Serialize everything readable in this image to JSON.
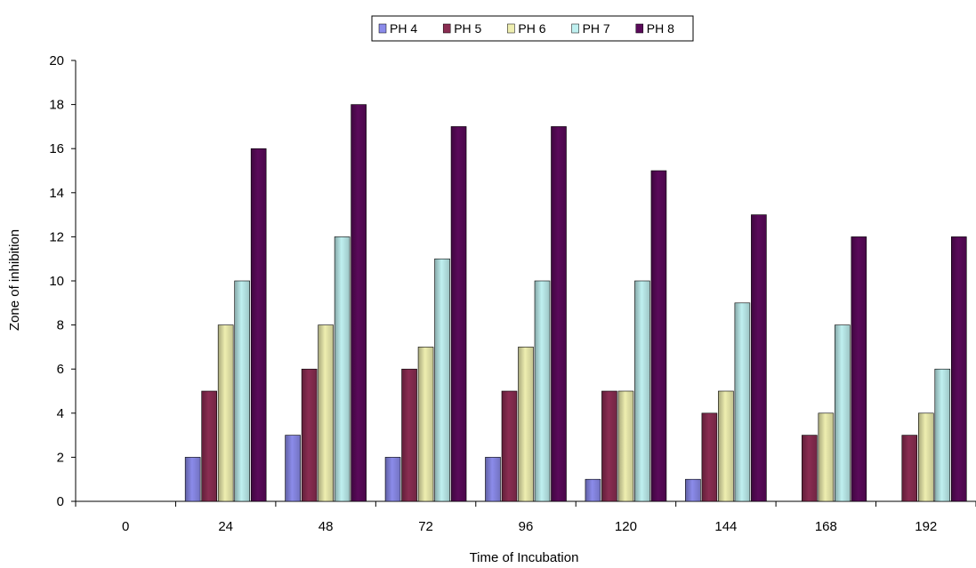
{
  "chart_data": {
    "type": "bar",
    "title": "",
    "xlabel": "Time of Incubation",
    "ylabel": "Zone of inhibition",
    "categories": [
      "0",
      "24",
      "48",
      "72",
      "96",
      "120",
      "144",
      "168",
      "192"
    ],
    "ylim": [
      0,
      20
    ],
    "yticks": [
      0,
      2,
      4,
      6,
      8,
      10,
      12,
      14,
      16,
      18,
      20
    ],
    "grid": false,
    "legend_position": "top",
    "series": [
      {
        "name": "PH 4",
        "color": "#8b8bea",
        "values": [
          0,
          2,
          3,
          2,
          2,
          1,
          1,
          0,
          0
        ]
      },
      {
        "name": "PH 5",
        "color": "#8a2d52",
        "values": [
          0,
          5,
          6,
          6,
          5,
          5,
          4,
          3,
          3
        ]
      },
      {
        "name": "PH 6",
        "color": "#eeeeb0",
        "values": [
          0,
          8,
          8,
          7,
          7,
          5,
          5,
          4,
          4
        ]
      },
      {
        "name": "PH 7",
        "color": "#bff0f0",
        "values": [
          0,
          10,
          12,
          11,
          10,
          10,
          9,
          8,
          6
        ]
      },
      {
        "name": "PH 8",
        "color": "#5a0a5a",
        "values": [
          0,
          16,
          18,
          17,
          17,
          15,
          13,
          12,
          12
        ]
      }
    ]
  }
}
